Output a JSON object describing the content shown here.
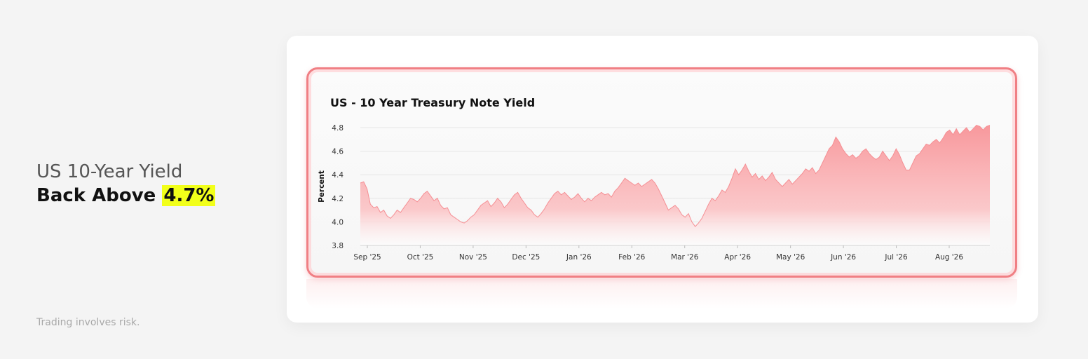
{
  "headline": {
    "line1": "US 10-Year Yield",
    "line2_prefix": "Back Above ",
    "line2_highlight": "4.7%"
  },
  "disclaimer": "Trading involves risk.",
  "colors": {
    "highlight": "#f2ff1a",
    "area": "#f8a3a6",
    "frame": "#f07f84"
  },
  "chart_data": {
    "type": "area",
    "title": "US - 10 Year Treasury Note Yield",
    "ylabel": "Percent",
    "ylim": [
      3.8,
      4.8
    ],
    "yticks": [
      "4.8",
      "4.6",
      "4.4",
      "4.2",
      "4.0",
      "3.8"
    ],
    "xticks": [
      "Sep '25",
      "Oct '25",
      "Nov '25",
      "Dec '25",
      "Jan '26",
      "Feb '26",
      "Mar '26",
      "Apr '26",
      "May '26",
      "Jun '26",
      "Jul '26",
      "Aug '26"
    ],
    "grid": true,
    "series": [
      {
        "values": [
          4.33,
          4.34,
          4.28,
          4.15,
          4.12,
          4.13,
          4.08,
          4.1,
          4.05,
          4.03,
          4.06,
          4.1,
          4.08,
          4.12,
          4.16,
          4.2,
          4.19,
          4.17,
          4.2,
          4.24,
          4.26,
          4.22,
          4.18,
          4.2,
          4.14,
          4.11,
          4.12,
          4.06,
          4.04,
          4.02,
          4.0,
          3.99,
          4.01,
          4.04,
          4.06,
          4.1,
          4.14,
          4.16,
          4.18,
          4.13,
          4.16,
          4.2,
          4.17,
          4.12,
          4.15,
          4.19,
          4.23,
          4.25,
          4.2,
          4.16,
          4.12,
          4.1,
          4.06,
          4.04,
          4.07,
          4.11,
          4.16,
          4.2,
          4.24,
          4.26,
          4.23,
          4.25,
          4.22,
          4.19,
          4.21,
          4.24,
          4.2,
          4.17,
          4.2,
          4.18,
          4.21,
          4.23,
          4.25,
          4.23,
          4.24,
          4.21,
          4.26,
          4.29,
          4.33,
          4.37,
          4.35,
          4.33,
          4.31,
          4.33,
          4.3,
          4.32,
          4.34,
          4.36,
          4.33,
          4.28,
          4.22,
          4.16,
          4.1,
          4.12,
          4.14,
          4.11,
          4.06,
          4.04,
          4.07,
          4.0,
          3.96,
          3.99,
          4.03,
          4.09,
          4.15,
          4.2,
          4.18,
          4.22,
          4.27,
          4.25,
          4.3,
          4.37,
          4.45,
          4.4,
          4.44,
          4.49,
          4.43,
          4.38,
          4.41,
          4.36,
          4.39,
          4.35,
          4.38,
          4.42,
          4.36,
          4.33,
          4.3,
          4.33,
          4.36,
          4.32,
          4.35,
          4.38,
          4.41,
          4.45,
          4.43,
          4.46,
          4.41,
          4.44,
          4.5,
          4.56,
          4.62,
          4.65,
          4.72,
          4.68,
          4.62,
          4.58,
          4.55,
          4.57,
          4.54,
          4.56,
          4.6,
          4.62,
          4.58,
          4.55,
          4.53,
          4.55,
          4.6,
          4.56,
          4.52,
          4.56,
          4.62,
          4.57,
          4.5,
          4.44,
          4.44,
          4.5,
          4.56,
          4.58,
          4.62,
          4.66,
          4.65,
          4.68,
          4.7,
          4.67,
          4.71,
          4.76,
          4.78,
          4.74,
          4.79,
          4.74,
          4.77,
          4.8,
          4.76,
          4.79,
          4.82,
          4.81,
          4.78,
          4.81,
          4.82
        ]
      }
    ]
  }
}
